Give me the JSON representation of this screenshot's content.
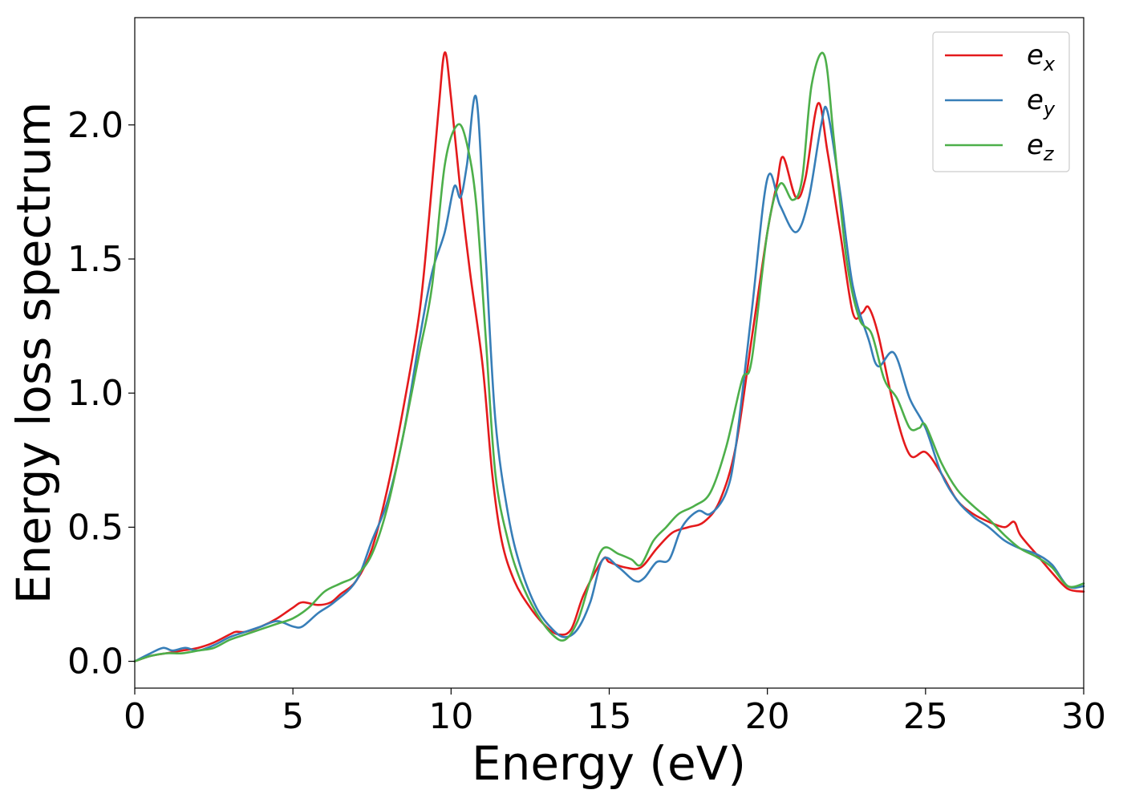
{
  "chart_data": {
    "type": "line",
    "title": "",
    "xlabel": "Energy (eV)",
    "ylabel": "Energy loss spectrum",
    "xlim": [
      0,
      30
    ],
    "ylim": [
      -0.1,
      2.4
    ],
    "grid": false,
    "legend_position": "top-right",
    "xticks": [
      0,
      5,
      10,
      15,
      20,
      25,
      30
    ],
    "xtick_labels": [
      "0",
      "5",
      "10",
      "15",
      "20",
      "25",
      "30"
    ],
    "yticks": [
      0.0,
      0.5,
      1.0,
      1.5,
      2.0
    ],
    "ytick_labels": [
      "0.0",
      "0.5",
      "1.0",
      "1.5",
      "2.0"
    ],
    "series": [
      {
        "name": "e",
        "subscript": "x",
        "color": "#e41a1c",
        "x": [
          0,
          0.5,
          1,
          1.5,
          2,
          2.5,
          3,
          3.2,
          3.5,
          4,
          4.5,
          5,
          5.3,
          5.8,
          6.2,
          6.5,
          7,
          7.5,
          8,
          8.5,
          9,
          9.3,
          9.6,
          9.8,
          10.0,
          10.3,
          10.6,
          11,
          11.3,
          11.6,
          12,
          12.5,
          13,
          13.4,
          13.8,
          14.2,
          14.8,
          15,
          15.5,
          16,
          16.5,
          17,
          17.5,
          18,
          18.5,
          19,
          19.5,
          20,
          20.3,
          20.5,
          20.9,
          21.2,
          21.6,
          21.9,
          22.3,
          22.7,
          23,
          23.2,
          23.5,
          24,
          24.5,
          25,
          25.5,
          26,
          26.5,
          27,
          27.5,
          27.8,
          28,
          28.5,
          29,
          29.5,
          30
        ],
        "y": [
          0.0,
          0.02,
          0.03,
          0.04,
          0.05,
          0.07,
          0.1,
          0.11,
          0.11,
          0.13,
          0.16,
          0.2,
          0.22,
          0.21,
          0.22,
          0.25,
          0.3,
          0.42,
          0.65,
          0.95,
          1.3,
          1.65,
          2.05,
          2.27,
          2.1,
          1.75,
          1.45,
          1.1,
          0.7,
          0.45,
          0.3,
          0.2,
          0.13,
          0.1,
          0.12,
          0.25,
          0.38,
          0.37,
          0.35,
          0.35,
          0.42,
          0.48,
          0.5,
          0.52,
          0.6,
          0.8,
          1.2,
          1.6,
          1.78,
          1.88,
          1.73,
          1.8,
          2.08,
          1.9,
          1.6,
          1.3,
          1.3,
          1.32,
          1.22,
          0.95,
          0.77,
          0.78,
          0.7,
          0.6,
          0.55,
          0.52,
          0.5,
          0.52,
          0.47,
          0.4,
          0.33,
          0.27,
          0.26
        ]
      },
      {
        "name": "e",
        "subscript": "y",
        "color": "#377eb8",
        "x": [
          0,
          0.5,
          0.9,
          1.2,
          1.6,
          2,
          2.5,
          3,
          3.5,
          4,
          4.5,
          5,
          5.3,
          5.8,
          6.3,
          7,
          7.5,
          8,
          8.5,
          9,
          9.4,
          9.8,
          10.1,
          10.3,
          10.5,
          10.8,
          11.1,
          11.4,
          11.8,
          12.2,
          12.7,
          13.2,
          13.6,
          14,
          14.4,
          14.8,
          15.3,
          15.8,
          16.1,
          16.5,
          16.9,
          17.3,
          17.8,
          18.2,
          18.7,
          19,
          19.5,
          20,
          20.4,
          20.9,
          21.3,
          21.7,
          21.9,
          22.3,
          22.7,
          23.2,
          23.5,
          24,
          24.5,
          25,
          25.5,
          26,
          26.5,
          27,
          27.5,
          28,
          28.5,
          29,
          29.5,
          30
        ],
        "y": [
          0.0,
          0.03,
          0.05,
          0.04,
          0.05,
          0.04,
          0.06,
          0.09,
          0.11,
          0.13,
          0.15,
          0.13,
          0.13,
          0.18,
          0.22,
          0.3,
          0.45,
          0.6,
          0.85,
          1.2,
          1.45,
          1.6,
          1.77,
          1.73,
          1.85,
          2.1,
          1.5,
          0.9,
          0.55,
          0.35,
          0.2,
          0.12,
          0.09,
          0.12,
          0.22,
          0.38,
          0.35,
          0.3,
          0.31,
          0.37,
          0.38,
          0.5,
          0.56,
          0.55,
          0.63,
          0.8,
          1.3,
          1.8,
          1.7,
          1.6,
          1.72,
          2.0,
          2.05,
          1.75,
          1.4,
          1.2,
          1.1,
          1.15,
          0.98,
          0.87,
          0.7,
          0.6,
          0.54,
          0.5,
          0.45,
          0.42,
          0.4,
          0.36,
          0.28,
          0.28
        ]
      },
      {
        "name": "e",
        "subscript": "z",
        "color": "#4daf4a",
        "x": [
          0,
          0.5,
          1,
          1.5,
          2,
          2.5,
          3,
          3.5,
          4,
          4.5,
          5,
          5.5,
          6,
          6.5,
          7,
          7.5,
          8,
          8.5,
          9,
          9.4,
          9.8,
          10.2,
          10.5,
          10.8,
          11.1,
          11.4,
          11.8,
          12.2,
          12.7,
          13.2,
          13.6,
          14,
          14.4,
          14.8,
          15.3,
          15.7,
          16,
          16.4,
          16.8,
          17.2,
          17.7,
          18.2,
          18.7,
          19.2,
          19.5,
          20,
          20.4,
          20.8,
          21.1,
          21.4,
          21.8,
          22.1,
          22.5,
          22.9,
          23.3,
          23.7,
          24.1,
          24.5,
          24.8,
          25,
          25.5,
          26,
          26.5,
          27,
          27.5,
          28,
          28.5,
          29,
          29.5,
          30
        ],
        "y": [
          0.0,
          0.02,
          0.03,
          0.03,
          0.04,
          0.05,
          0.08,
          0.1,
          0.12,
          0.14,
          0.16,
          0.2,
          0.26,
          0.29,
          0.32,
          0.4,
          0.58,
          0.85,
          1.15,
          1.4,
          1.85,
          2.0,
          1.93,
          1.7,
          1.2,
          0.7,
          0.45,
          0.3,
          0.18,
          0.1,
          0.08,
          0.15,
          0.3,
          0.42,
          0.4,
          0.38,
          0.36,
          0.45,
          0.5,
          0.55,
          0.58,
          0.63,
          0.8,
          1.05,
          1.12,
          1.6,
          1.78,
          1.72,
          1.8,
          2.15,
          2.26,
          1.95,
          1.5,
          1.28,
          1.22,
          1.05,
          0.98,
          0.87,
          0.87,
          0.88,
          0.74,
          0.64,
          0.58,
          0.53,
          0.47,
          0.42,
          0.39,
          0.35,
          0.28,
          0.29
        ]
      }
    ]
  }
}
